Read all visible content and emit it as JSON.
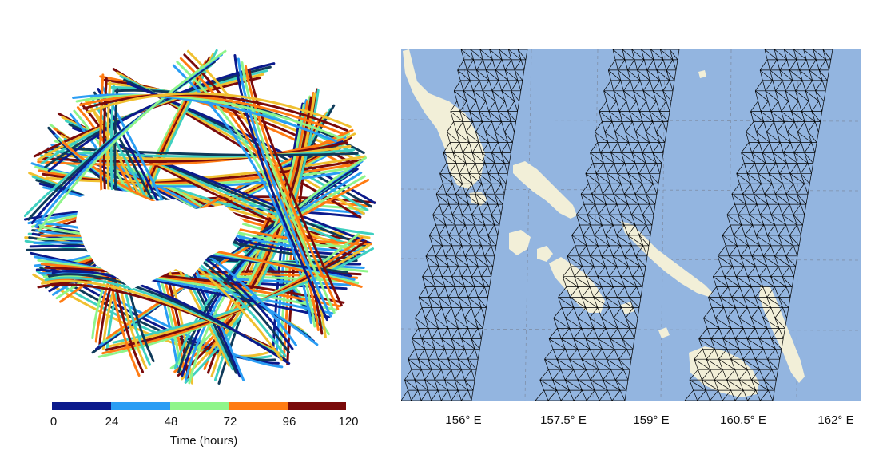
{
  "colorbar": {
    "title": "Time (hours)",
    "ticks": [
      "0",
      "24",
      "48",
      "72",
      "96",
      "120"
    ],
    "colors": [
      "#0b1a8c",
      "#2a9df4",
      "#8ff58a",
      "#ff7b12",
      "#7a0a0a"
    ]
  },
  "map": {
    "ocean_color": "#93b5e0",
    "land_color": "#f2efd8",
    "mesh_color": "#000000",
    "x_ticks": [
      "156° E",
      "157.5° E",
      "159° E",
      "160.5° E",
      "162° E"
    ]
  }
}
